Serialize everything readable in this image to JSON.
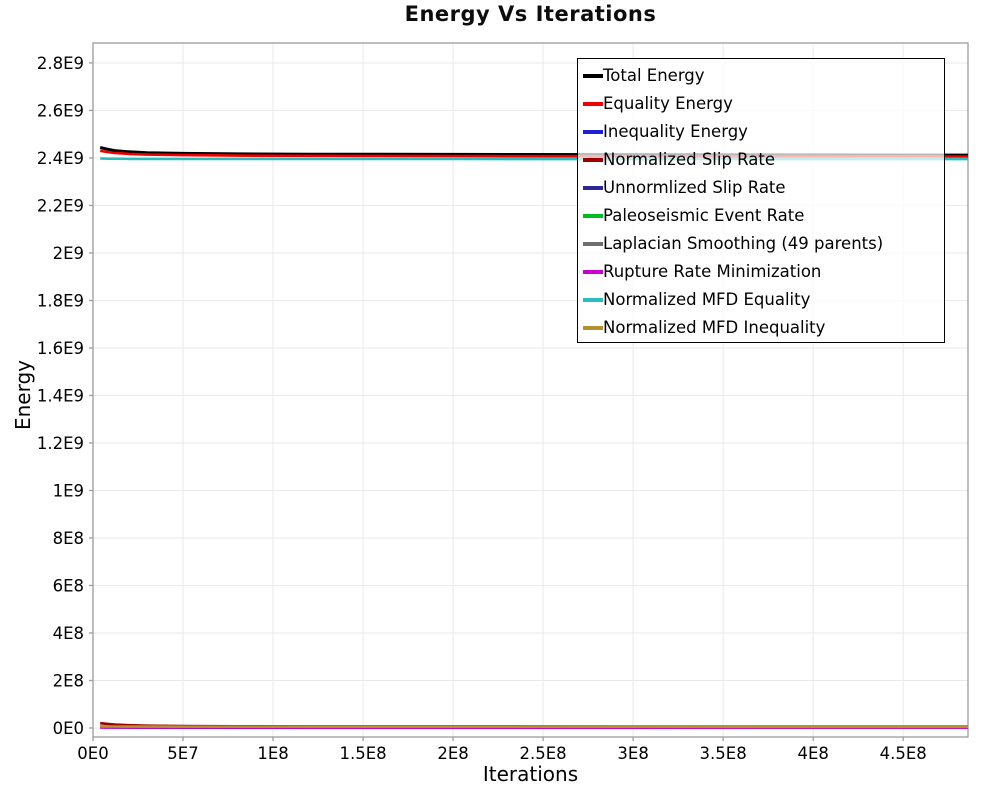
{
  "chart_data": {
    "type": "line",
    "title": "Energy Vs Iterations",
    "xlabel": "Iterations",
    "ylabel": "Energy",
    "xlim": [
      0,
      486000000
    ],
    "ylim": [
      -38000000,
      2884000000
    ],
    "grid": true,
    "legend_position": "upper-right-inside",
    "x_ticks": {
      "values": [
        0,
        50000000,
        100000000,
        150000000,
        200000000,
        250000000,
        300000000,
        350000000,
        400000000,
        450000000
      ],
      "labels": [
        "0E0",
        "5E7",
        "1E8",
        "1.5E8",
        "2E8",
        "2.5E8",
        "3E8",
        "3.5E8",
        "4E8",
        "4.5E8"
      ]
    },
    "y_ticks": {
      "values": [
        0,
        200000000,
        400000000,
        600000000,
        800000000,
        1000000000,
        1200000000,
        1400000000,
        1600000000,
        1800000000,
        2000000000,
        2200000000,
        2400000000,
        2600000000,
        2800000000
      ],
      "labels": [
        "0E0",
        "2E8",
        "4E8",
        "6E8",
        "8E8",
        "1E9",
        "1.2E9",
        "1.4E9",
        "1.6E9",
        "1.8E9",
        "2E9",
        "2.2E9",
        "2.4E9",
        "2.6E9",
        "2.8E9"
      ]
    },
    "x": [
      4000000,
      8000000,
      12000000,
      20000000,
      30000000,
      50000000,
      80000000,
      120000000,
      200000000,
      300000000,
      400000000,
      486000000
    ],
    "series": [
      {
        "name": "Total Energy",
        "color": "#000000",
        "width": 3.0,
        "values": [
          2444000000,
          2437000000,
          2431000000,
          2426000000,
          2422000000,
          2419000000,
          2417000000,
          2416000000,
          2415000000,
          2414000000,
          2413000000,
          2412000000
        ]
      },
      {
        "name": "Equality Energy",
        "color": "#ee0000",
        "width": 2.6,
        "values": [
          2430000000,
          2425000000,
          2421000000,
          2417000000,
          2414000000,
          2412000000,
          2410000000,
          2409000000,
          2408000000,
          2407000000,
          2406000000,
          2406000000
        ]
      },
      {
        "name": "Inequality Energy",
        "color": "#1f1fd4",
        "width": 2.6,
        "values": [
          3000000,
          2500000,
          2000000,
          1800000,
          1500000,
          1200000,
          1000000,
          1000000,
          1000000,
          1000000,
          1000000,
          1000000
        ]
      },
      {
        "name": "Normalized Slip Rate",
        "color": "#9b0000",
        "width": 2.6,
        "values": [
          20000000,
          17000000,
          14000000,
          11500000,
          9500000,
          8000000,
          7200000,
          6800000,
          6500000,
          6300000,
          6200000,
          6200000
        ]
      },
      {
        "name": "Unnormlized Slip Rate",
        "color": "#2a2a96",
        "width": 2.6,
        "values": [
          4000000,
          3500000,
          3000000,
          2600000,
          2300000,
          2000000,
          1800000,
          1700000,
          1600000,
          1500000,
          1500000,
          1500000
        ]
      },
      {
        "name": "Paleoseismic Event Rate",
        "color": "#00bb22",
        "width": 2.6,
        "values": [
          6000000,
          5500000,
          5000000,
          4600000,
          4300000,
          4000000,
          3800000,
          3700000,
          3600000,
          3500000,
          3500000,
          3500000
        ]
      },
      {
        "name": "Laplacian Smoothing (49 parents)",
        "color": "#6e6e6e",
        "width": 2.6,
        "values": [
          5000000,
          4600000,
          4200000,
          3900000,
          3600000,
          3400000,
          3200000,
          3100000,
          3000000,
          3000000,
          3000000,
          3000000
        ]
      },
      {
        "name": "Rupture Rate Minimization",
        "color": "#cc00cc",
        "width": 2.6,
        "values": [
          2500000,
          2200000,
          2000000,
          1800000,
          1600000,
          1500000,
          1400000,
          1300000,
          1300000,
          1200000,
          1200000,
          1200000
        ]
      },
      {
        "name": "Normalized MFD Equality",
        "color": "#2bbdbd",
        "width": 2.6,
        "values": [
          2398000000,
          2397000000,
          2397000000,
          2396000000,
          2396000000,
          2396000000,
          2396000000,
          2395500000,
          2395500000,
          2395000000,
          2395000000,
          2395000000
        ]
      },
      {
        "name": "Normalized MFD Inequality",
        "color": "#b5912c",
        "width": 2.6,
        "values": [
          6500000,
          6200000,
          6000000,
          5800000,
          5600000,
          5500000,
          5400000,
          5300000,
          5200000,
          5200000,
          5100000,
          5100000
        ]
      }
    ]
  },
  "styles": {
    "plot_border_color": "#9c9c9c",
    "gridline_color": "#e9e9e9",
    "tick_color": "#9c9c9c",
    "tick_label_color": "#000000",
    "legend_border_color": "#000000"
  }
}
